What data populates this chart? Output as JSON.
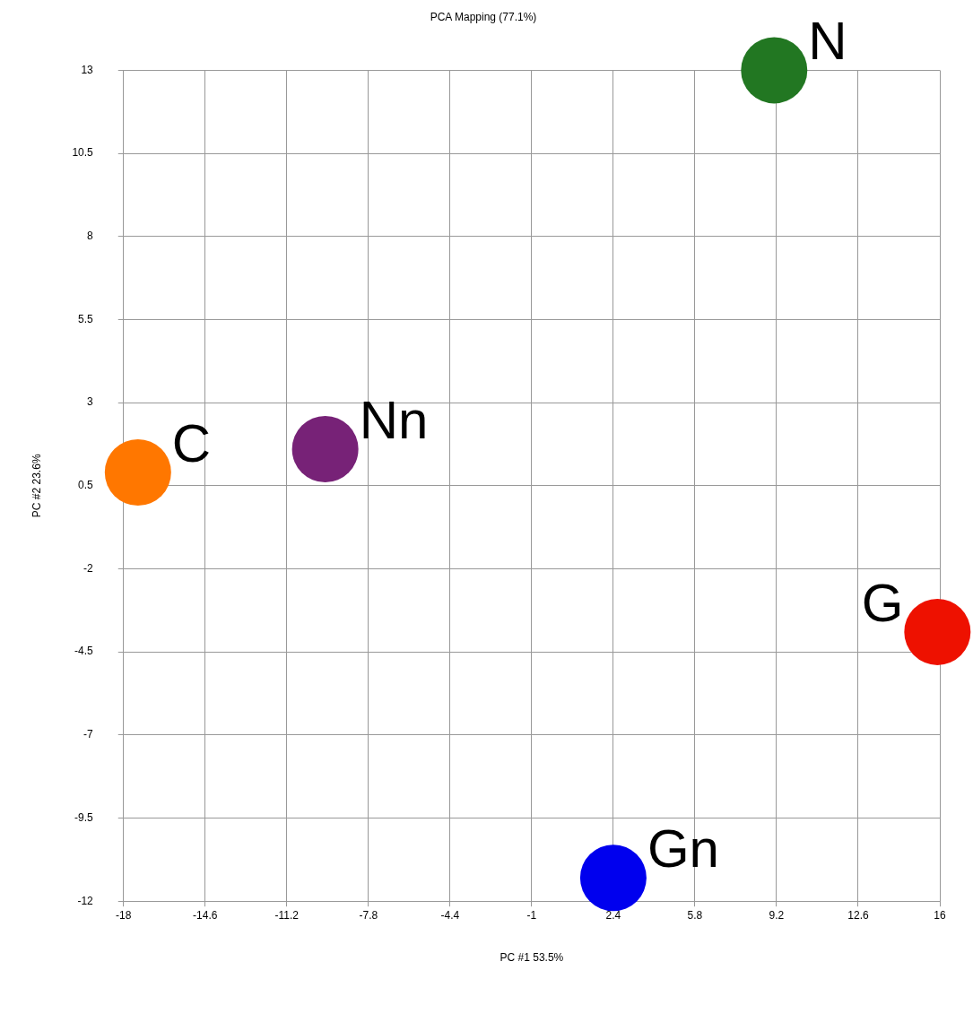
{
  "chart_data": {
    "type": "scatter",
    "title": "PCA Mapping (77.1%)",
    "xlabel": "PC #1 53.5%",
    "ylabel": "PC #2 23.6%",
    "xlim": [
      -18,
      16
    ],
    "xticks": [
      -18,
      -14.6,
      -11.2,
      -7.8,
      -4.4,
      -1,
      2.4,
      5.8,
      9.2,
      12.6,
      16
    ],
    "ylim": [
      -12,
      13
    ],
    "yticks": [
      -12,
      -9.5,
      -7,
      -4.5,
      -2,
      0.5,
      3,
      5.5,
      8,
      10.5,
      13
    ],
    "grid": true,
    "legend": false,
    "marker": "circle",
    "series": [
      {
        "name": "C",
        "color": "#ff7700",
        "x": [
          -17.4
        ],
        "values": [
          0.9
        ]
      },
      {
        "name": "Nn",
        "color": "#772277",
        "x": [
          -9.6
        ],
        "values": [
          1.6
        ]
      },
      {
        "name": "N",
        "color": "#227722",
        "x": [
          9.1
        ],
        "values": [
          13
        ]
      },
      {
        "name": "G",
        "color": "#ee1100",
        "x": [
          15.9
        ],
        "values": [
          -3.9
        ]
      },
      {
        "name": "Gn",
        "color": "#0000ee",
        "x": [
          2.4
        ],
        "values": [
          -11.3
        ]
      }
    ]
  }
}
